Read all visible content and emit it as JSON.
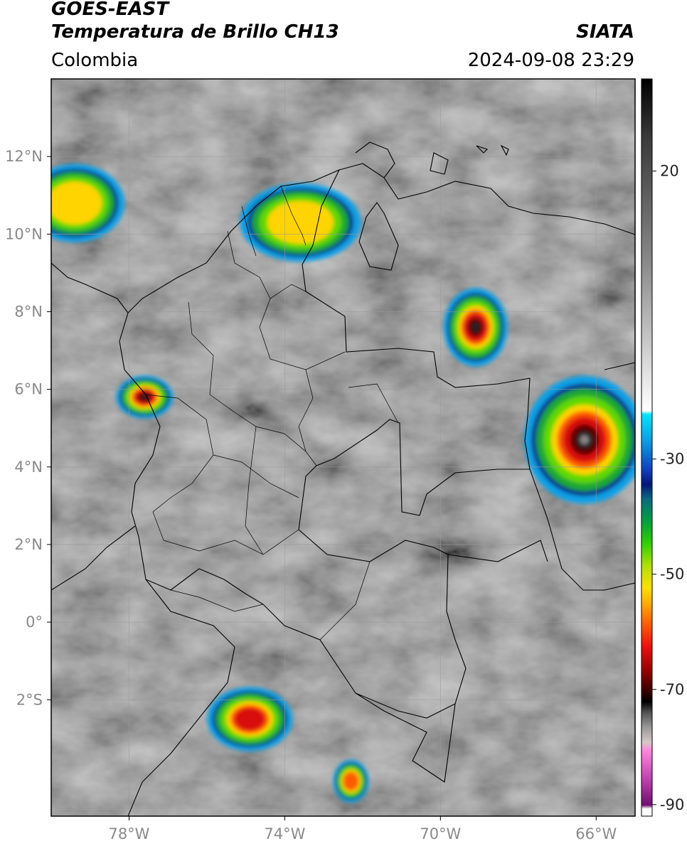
{
  "header": {
    "satellite": "GOES-EAST",
    "product": "Temperatura de Brillo CH13",
    "region": "Colombia",
    "agency": "SIATA",
    "datetime": "2024-09-08 23:29"
  },
  "map": {
    "lon_range": [
      -80.0,
      -65.0
    ],
    "lat_range": [
      -5.0,
      14.0
    ],
    "lat_ticks": [
      {
        "value": 12,
        "label": "12°N"
      },
      {
        "value": 10,
        "label": "10°N"
      },
      {
        "value": 8,
        "label": "8°N"
      },
      {
        "value": 6,
        "label": "6°N"
      },
      {
        "value": 4,
        "label": "4°N"
      },
      {
        "value": 2,
        "label": "2°N"
      },
      {
        "value": 0,
        "label": "0°"
      },
      {
        "value": -2,
        "label": "2°S"
      }
    ],
    "lon_ticks": [
      {
        "value": -78,
        "label": "78°W"
      },
      {
        "value": -74,
        "label": "74°W"
      },
      {
        "value": -70,
        "label": "70°W"
      },
      {
        "value": -66,
        "label": "66°W"
      }
    ],
    "grid": true
  },
  "colorbar": {
    "range": [
      -92,
      36
    ],
    "ticks": [
      {
        "value": 20,
        "label": "20"
      },
      {
        "value": -30,
        "label": "-30"
      },
      {
        "value": -50,
        "label": "-50"
      },
      {
        "value": -70,
        "label": "-70"
      },
      {
        "value": -90,
        "label": "-90"
      }
    ]
  },
  "cloud_systems": [
    {
      "name": "caribbean-cluster-west",
      "lon": -79.4,
      "lat": 10.8,
      "min_temp": -55
    },
    {
      "name": "la-guajira-cesar-storm",
      "lon": -73.6,
      "lat": 10.3,
      "min_temp": -52
    },
    {
      "name": "apure-storm",
      "lon": -69.1,
      "lat": 7.6,
      "min_temp": -75
    },
    {
      "name": "amazonas-venezuela-complex",
      "lon": -66.3,
      "lat": 4.7,
      "min_temp": -80
    },
    {
      "name": "pacific-choco-storm",
      "lon": -77.6,
      "lat": 5.8,
      "min_temp": -75
    },
    {
      "name": "putumayo-storm",
      "lon": -74.9,
      "lat": -2.5,
      "min_temp": -65
    },
    {
      "name": "southern-amazon-storm",
      "lon": -72.3,
      "lat": -4.1,
      "min_temp": -58
    }
  ]
}
